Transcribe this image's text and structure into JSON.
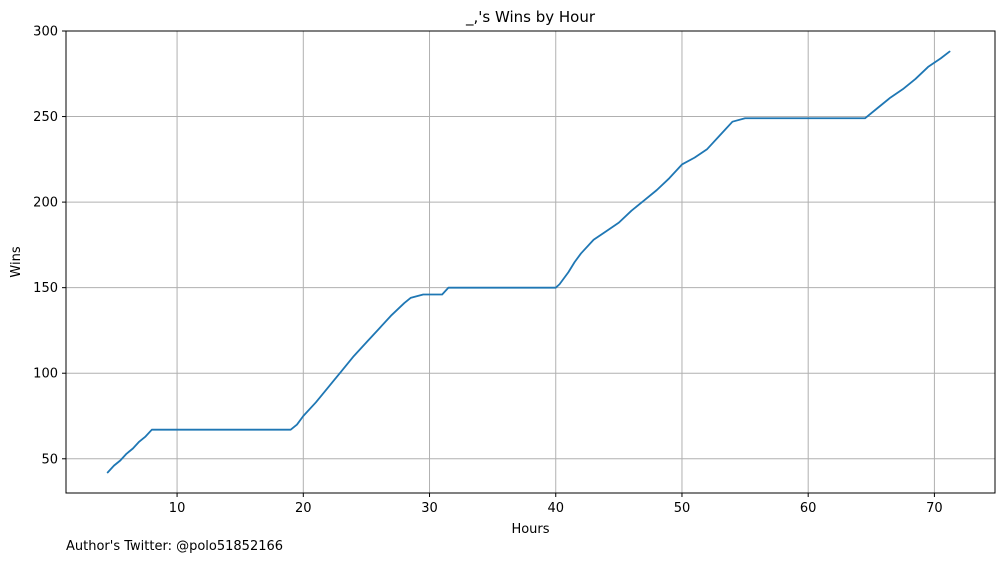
{
  "chart_data": {
    "type": "line",
    "title": "_,'s Wins by Hour",
    "xlabel": "Hours",
    "ylabel": "Wins",
    "xlim": [
      1.2,
      74.8
    ],
    "ylim": [
      30,
      300
    ],
    "xticks": [
      10,
      20,
      30,
      40,
      50,
      60,
      70
    ],
    "yticks": [
      50,
      100,
      150,
      200,
      250,
      300
    ],
    "grid": true,
    "series": [
      {
        "color": "#1f77b4",
        "x": [
          4.5,
          5.0,
          5.5,
          6.0,
          6.5,
          7.0,
          7.5,
          8.0,
          9.0,
          12.0,
          15.0,
          18.0,
          19.0,
          19.5,
          20.0,
          21.0,
          22.0,
          23.0,
          24.0,
          25.0,
          26.0,
          27.0,
          28.0,
          28.5,
          29.5,
          31.0,
          31.5,
          35.0,
          40.0,
          40.3,
          41.0,
          41.5,
          42.0,
          43.0,
          44.0,
          45.0,
          46.0,
          47.0,
          48.0,
          49.0,
          50.0,
          51.0,
          52.0,
          53.0,
          54.0,
          55.0,
          58.0,
          62.0,
          64.5,
          65.5,
          66.5,
          67.5,
          68.5,
          69.5,
          70.5,
          71.2
        ],
        "y": [
          42,
          46,
          49,
          53,
          56,
          60,
          63,
          67,
          67,
          67,
          67,
          67,
          67,
          70,
          75,
          83,
          92,
          101,
          110,
          118,
          126,
          134,
          141,
          144,
          146,
          146,
          150,
          150,
          150,
          152,
          159,
          165,
          170,
          178,
          183,
          188,
          195,
          201,
          207,
          214,
          222,
          226,
          231,
          239,
          247,
          249,
          249,
          249,
          249,
          255,
          261,
          266,
          272,
          279,
          284,
          288
        ]
      }
    ]
  },
  "footer": {
    "author": "Author's Twitter: @polo51852166"
  }
}
